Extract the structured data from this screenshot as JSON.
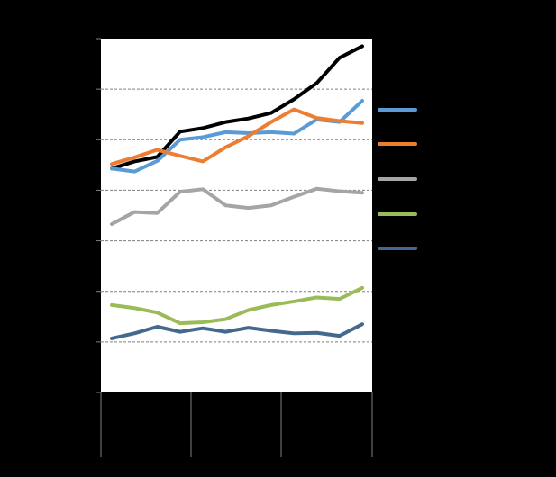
{
  "chart_data": {
    "type": "line",
    "x": [
      1,
      2,
      3,
      4,
      5,
      6,
      7,
      8,
      9,
      10,
      11,
      12
    ],
    "ylim": [
      0,
      7
    ],
    "grid": true,
    "legend": "right",
    "series": [
      {
        "color": "#000000",
        "values": [
          4.43,
          4.57,
          4.66,
          5.16,
          5.23,
          5.35,
          5.42,
          5.53,
          5.8,
          6.12,
          6.62,
          6.85
        ]
      },
      {
        "color": "#5B9BD5",
        "values": [
          4.43,
          4.37,
          4.58,
          5.0,
          5.05,
          5.15,
          5.13,
          5.15,
          5.12,
          5.4,
          5.35,
          5.77
        ]
      },
      {
        "color": "#ED7D31",
        "values": [
          4.52,
          4.65,
          4.8,
          4.68,
          4.57,
          4.85,
          5.07,
          5.35,
          5.6,
          5.43,
          5.37,
          5.33
        ]
      },
      {
        "color": "#A5A5A5",
        "values": [
          3.33,
          3.57,
          3.55,
          3.97,
          4.02,
          3.7,
          3.65,
          3.7,
          3.87,
          4.03,
          3.98,
          3.95
        ]
      },
      {
        "color": "#9BBB59",
        "values": [
          1.73,
          1.67,
          1.58,
          1.37,
          1.39,
          1.45,
          1.63,
          1.73,
          1.8,
          1.88,
          1.85,
          2.07
        ]
      },
      {
        "color": "#44698F",
        "values": [
          1.07,
          1.17,
          1.3,
          1.2,
          1.27,
          1.2,
          1.28,
          1.22,
          1.17,
          1.18,
          1.12,
          1.35
        ]
      }
    ]
  }
}
